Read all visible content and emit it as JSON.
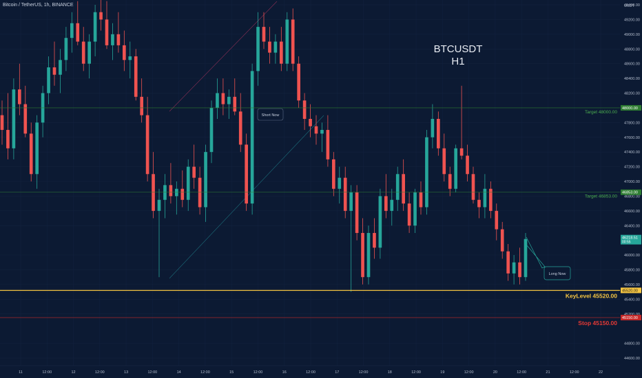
{
  "header": {
    "symbol_line": "Bitcoin / TetherUS, 1h, BINANCE"
  },
  "overlay": {
    "pair": "BTCUSDT",
    "timeframe": "H1"
  },
  "price_axis": {
    "currency": "USDT",
    "ticks": [
      "49400.00",
      "49200.00",
      "49000.00",
      "48800.00",
      "48600.00",
      "48400.00",
      "48200.00",
      "47800.00",
      "47600.00",
      "47400.00",
      "47200.00",
      "47000.00",
      "46800.00",
      "46600.00",
      "46400.00",
      "46000.00",
      "45800.00",
      "45600.00",
      "45400.00",
      "45200.00",
      "44800.00",
      "44600.00"
    ]
  },
  "last_price": {
    "value": "46218.51",
    "countdown": "00:55",
    "color": "#26a69a"
  },
  "levels": [
    {
      "id": "target1",
      "price": 48000.0,
      "label": "Target 48000.00",
      "tag": "48000.00",
      "color": "#2e7d32",
      "text_color": "#4caf50",
      "width": 0.6
    },
    {
      "id": "target2",
      "price": 46853.0,
      "label": "Target 46853.00",
      "tag": "46853.00",
      "color": "#2e7d32",
      "text_color": "#4caf50",
      "width": 0.6
    },
    {
      "id": "keylevel",
      "price": 45520.0,
      "label": "KeyLevel 45520.00",
      "tag": "45520.00",
      "color": "#f5c542",
      "text_color": "#f5c542",
      "width": 1.2
    },
    {
      "id": "stop",
      "price": 45150.0,
      "label": "Stop 45150.00",
      "tag": "45150.00",
      "color": "#c62828",
      "text_color": "#e53935",
      "width": 0.6
    }
  ],
  "annotations": [
    {
      "id": "short-now",
      "text": "Short Now"
    },
    {
      "id": "long-now",
      "text": "Long Now"
    }
  ],
  "time_axis": {
    "labels": [
      "11",
      "12:00",
      "12",
      "12:00",
      "13",
      "12:00",
      "14",
      "12:00",
      "15",
      "12:00",
      "16",
      "12:00",
      "17",
      "12:00",
      "18",
      "12:00",
      "19",
      "12:00",
      "20",
      "12:00",
      "21",
      "12:00",
      "22"
    ]
  },
  "chart_data": {
    "type": "candlestick",
    "title": "BTCUSDT H1",
    "up_color": "#26a69a",
    "down_color": "#ef5350",
    "horizontal_levels": [
      48000.0,
      46853.0,
      45520.0,
      45150.0
    ],
    "candles": [
      {
        "o": 47900,
        "h": 48100,
        "l": 47500,
        "c": 47700
      },
      {
        "o": 47700,
        "h": 48200,
        "l": 47300,
        "c": 47450
      },
      {
        "o": 47450,
        "h": 48400,
        "l": 47300,
        "c": 48250
      },
      {
        "o": 48250,
        "h": 48600,
        "l": 47900,
        "c": 48050
      },
      {
        "o": 48050,
        "h": 48300,
        "l": 47600,
        "c": 47650
      },
      {
        "o": 47650,
        "h": 47800,
        "l": 47000,
        "c": 47100
      },
      {
        "o": 47100,
        "h": 47900,
        "l": 46900,
        "c": 47800
      },
      {
        "o": 47800,
        "h": 48300,
        "l": 47600,
        "c": 48200
      },
      {
        "o": 48200,
        "h": 48700,
        "l": 48050,
        "c": 48550
      },
      {
        "o": 48550,
        "h": 48900,
        "l": 48300,
        "c": 48450
      },
      {
        "o": 48450,
        "h": 48800,
        "l": 48200,
        "c": 48650
      },
      {
        "o": 48650,
        "h": 49100,
        "l": 48500,
        "c": 48950
      },
      {
        "o": 48950,
        "h": 49300,
        "l": 48750,
        "c": 49150
      },
      {
        "o": 49150,
        "h": 49450,
        "l": 48850,
        "c": 48900
      },
      {
        "o": 48900,
        "h": 49100,
        "l": 48500,
        "c": 48600
      },
      {
        "o": 48600,
        "h": 49000,
        "l": 48400,
        "c": 48900
      },
      {
        "o": 48900,
        "h": 49400,
        "l": 48700,
        "c": 49300
      },
      {
        "o": 49300,
        "h": 49500,
        "l": 49050,
        "c": 49200
      },
      {
        "o": 49200,
        "h": 49450,
        "l": 48800,
        "c": 48850
      },
      {
        "o": 48850,
        "h": 49150,
        "l": 48650,
        "c": 49000
      },
      {
        "o": 49000,
        "h": 49300,
        "l": 48750,
        "c": 48850
      },
      {
        "o": 48850,
        "h": 49050,
        "l": 48500,
        "c": 48650
      },
      {
        "o": 48650,
        "h": 48900,
        "l": 48400,
        "c": 48700
      },
      {
        "o": 48700,
        "h": 48800,
        "l": 48100,
        "c": 48150
      },
      {
        "o": 48150,
        "h": 48400,
        "l": 47800,
        "c": 47900
      },
      {
        "o": 47900,
        "h": 48150,
        "l": 47000,
        "c": 47100
      },
      {
        "o": 47100,
        "h": 47400,
        "l": 46500,
        "c": 46600
      },
      {
        "o": 46600,
        "h": 46900,
        "l": 45700,
        "c": 46750
      },
      {
        "o": 46750,
        "h": 47100,
        "l": 46500,
        "c": 46950
      },
      {
        "o": 46950,
        "h": 47250,
        "l": 46700,
        "c": 46800
      },
      {
        "o": 46800,
        "h": 47000,
        "l": 46550,
        "c": 46900
      },
      {
        "o": 46900,
        "h": 47150,
        "l": 46650,
        "c": 46750
      },
      {
        "o": 46750,
        "h": 47300,
        "l": 46600,
        "c": 47200
      },
      {
        "o": 47200,
        "h": 47500,
        "l": 46900,
        "c": 47050
      },
      {
        "o": 47050,
        "h": 47200,
        "l": 46550,
        "c": 46650
      },
      {
        "o": 46650,
        "h": 47500,
        "l": 46450,
        "c": 47400
      },
      {
        "o": 47400,
        "h": 48100,
        "l": 47250,
        "c": 48000
      },
      {
        "o": 48000,
        "h": 48400,
        "l": 47850,
        "c": 48200
      },
      {
        "o": 48200,
        "h": 48400,
        "l": 47900,
        "c": 48050
      },
      {
        "o": 48050,
        "h": 48250,
        "l": 47850,
        "c": 48150
      },
      {
        "o": 48150,
        "h": 48400,
        "l": 47900,
        "c": 47950
      },
      {
        "o": 47950,
        "h": 48200,
        "l": 47400,
        "c": 47500
      },
      {
        "o": 47500,
        "h": 47650,
        "l": 46600,
        "c": 46700
      },
      {
        "o": 46700,
        "h": 48600,
        "l": 46550,
        "c": 48500
      },
      {
        "o": 48500,
        "h": 49300,
        "l": 48300,
        "c": 49100
      },
      {
        "o": 49100,
        "h": 49300,
        "l": 48800,
        "c": 48900
      },
      {
        "o": 48900,
        "h": 49100,
        "l": 48600,
        "c": 48750
      },
      {
        "o": 48750,
        "h": 49000,
        "l": 48600,
        "c": 48900
      },
      {
        "o": 48900,
        "h": 49100,
        "l": 48500,
        "c": 48600
      },
      {
        "o": 48600,
        "h": 49300,
        "l": 48500,
        "c": 49200
      },
      {
        "o": 49200,
        "h": 49350,
        "l": 48500,
        "c": 48600
      },
      {
        "o": 48600,
        "h": 48700,
        "l": 48000,
        "c": 48100
      },
      {
        "o": 48100,
        "h": 48200,
        "l": 47700,
        "c": 47850
      },
      {
        "o": 47850,
        "h": 48050,
        "l": 47600,
        "c": 47750
      },
      {
        "o": 47750,
        "h": 47900,
        "l": 47500,
        "c": 47650
      },
      {
        "o": 47650,
        "h": 47800,
        "l": 47400,
        "c": 47700
      },
      {
        "o": 47700,
        "h": 47900,
        "l": 47200,
        "c": 47300
      },
      {
        "o": 47300,
        "h": 47400,
        "l": 46800,
        "c": 46900
      },
      {
        "o": 46900,
        "h": 47200,
        "l": 46700,
        "c": 47050
      },
      {
        "o": 47050,
        "h": 47200,
        "l": 46500,
        "c": 46600
      },
      {
        "o": 46600,
        "h": 46950,
        "l": 45500,
        "c": 46850
      },
      {
        "o": 46850,
        "h": 46950,
        "l": 46200,
        "c": 46300
      },
      {
        "o": 46300,
        "h": 46500,
        "l": 45600,
        "c": 45700
      },
      {
        "o": 45700,
        "h": 46400,
        "l": 45600,
        "c": 46300
      },
      {
        "o": 46300,
        "h": 46500,
        "l": 45950,
        "c": 46100
      },
      {
        "o": 46100,
        "h": 46900,
        "l": 45950,
        "c": 46800
      },
      {
        "o": 46800,
        "h": 47100,
        "l": 46500,
        "c": 46600
      },
      {
        "o": 46600,
        "h": 46900,
        "l": 46400,
        "c": 46750
      },
      {
        "o": 46750,
        "h": 47200,
        "l": 46600,
        "c": 47100
      },
      {
        "o": 47100,
        "h": 47300,
        "l": 46600,
        "c": 46700
      },
      {
        "o": 46700,
        "h": 46850,
        "l": 46300,
        "c": 46400
      },
      {
        "o": 46400,
        "h": 46900,
        "l": 46300,
        "c": 46850
      },
      {
        "o": 46850,
        "h": 47000,
        "l": 46550,
        "c": 46650
      },
      {
        "o": 46650,
        "h": 47700,
        "l": 46550,
        "c": 47600
      },
      {
        "o": 47600,
        "h": 48050,
        "l": 47450,
        "c": 47850
      },
      {
        "o": 47850,
        "h": 47950,
        "l": 47350,
        "c": 47450
      },
      {
        "o": 47450,
        "h": 47650,
        "l": 47000,
        "c": 47100
      },
      {
        "o": 47100,
        "h": 47200,
        "l": 46800,
        "c": 46900
      },
      {
        "o": 46900,
        "h": 47500,
        "l": 46850,
        "c": 47450
      },
      {
        "o": 47450,
        "h": 48300,
        "l": 47300,
        "c": 47350
      },
      {
        "o": 47350,
        "h": 47500,
        "l": 47000,
        "c": 47100
      },
      {
        "o": 47100,
        "h": 47200,
        "l": 46700,
        "c": 46750
      },
      {
        "o": 46750,
        "h": 46850,
        "l": 46500,
        "c": 46650
      },
      {
        "o": 46650,
        "h": 47100,
        "l": 46500,
        "c": 46900
      },
      {
        "o": 46900,
        "h": 47000,
        "l": 46500,
        "c": 46600
      },
      {
        "o": 46600,
        "h": 46700,
        "l": 46200,
        "c": 46350
      },
      {
        "o": 46350,
        "h": 46450,
        "l": 45950,
        "c": 46050
      },
      {
        "o": 46050,
        "h": 46150,
        "l": 45650,
        "c": 45750
      },
      {
        "o": 45750,
        "h": 46000,
        "l": 45600,
        "c": 45900
      },
      {
        "o": 45900,
        "h": 46100,
        "l": 45600,
        "c": 45700
      },
      {
        "o": 45700,
        "h": 46300,
        "l": 45650,
        "c": 46218
      }
    ]
  }
}
